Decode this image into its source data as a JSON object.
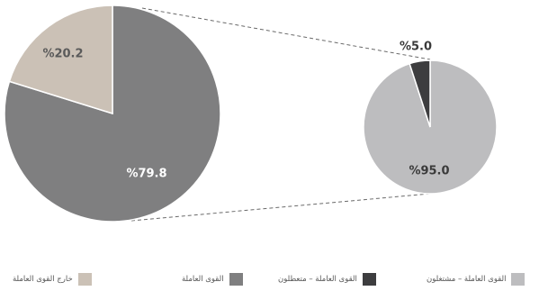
{
  "chart_data": [
    {
      "type": "pie",
      "slices": [
        {
          "label": "القوى العاملة",
          "value": 79.8,
          "text": "%79.8",
          "color": "#7f7f80"
        },
        {
          "label": "خارج القوى العاملة",
          "value": 20.2,
          "text": "%20.2",
          "color": "#cbc1b6"
        }
      ]
    },
    {
      "type": "pie",
      "slices": [
        {
          "label": "القوى العاملة – مشتغلون",
          "value": 95.0,
          "text": "%95.0",
          "color": "#bdbdbf"
        },
        {
          "label": "القوى العاملة – متعطلون",
          "value": 5.0,
          "text": "%5.0",
          "color": "#3d3d3f"
        }
      ]
    }
  ],
  "legend": [
    {
      "label": "القوى العاملة – مشتغلون",
      "color": "#bdbdbf"
    },
    {
      "label": "القوى العاملة – متعطلون",
      "color": "#3d3d3f"
    },
    {
      "label": "القوى العاملة",
      "color": "#7f7f80"
    },
    {
      "label": "خارج القوى العاملة",
      "color": "#cbc1b6"
    }
  ]
}
